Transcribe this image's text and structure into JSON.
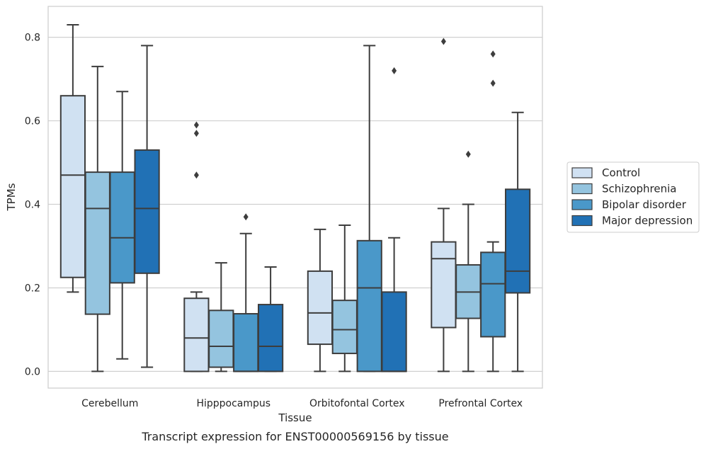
{
  "caption": "Transcript expression for ENST00000569156 by tissue",
  "chart_data": {
    "type": "boxplot",
    "xlabel": "Tissue",
    "ylabel": "TPMs",
    "ylim": [
      -0.04,
      0.874
    ],
    "yticks": [
      "0.0",
      "0.2",
      "0.4",
      "0.6",
      "0.8"
    ],
    "ytick_values": [
      0.0,
      0.2,
      0.4,
      0.6,
      0.8
    ],
    "grid": "horizontal",
    "legend_position": "right",
    "categories": [
      "Cerebellum",
      "Hipppocampus",
      "Orbitofontal Cortex",
      "Prefrontal Cortex"
    ],
    "series": [
      {
        "name": "Control",
        "color": "#d0e1f2",
        "boxes": [
          {
            "whisker_low": 0.19,
            "q1": 0.225,
            "median": 0.47,
            "q3": 0.66,
            "whisker_high": 0.83,
            "outliers": []
          },
          {
            "whisker_low": 0.0,
            "q1": 0.0,
            "median": 0.08,
            "q3": 0.175,
            "whisker_high": 0.19,
            "outliers": [
              0.59,
              0.57,
              0.47
            ]
          },
          {
            "whisker_low": 0.0,
            "q1": 0.065,
            "median": 0.14,
            "q3": 0.24,
            "whisker_high": 0.34,
            "outliers": []
          },
          {
            "whisker_low": 0.0,
            "q1": 0.105,
            "median": 0.27,
            "q3": 0.31,
            "whisker_high": 0.39,
            "outliers": [
              0.79
            ]
          }
        ]
      },
      {
        "name": "Schizophrenia",
        "color": "#94c4df",
        "boxes": [
          {
            "whisker_low": 0.0,
            "q1": 0.137,
            "median": 0.39,
            "q3": 0.477,
            "whisker_high": 0.73,
            "outliers": []
          },
          {
            "whisker_low": 0.0,
            "q1": 0.01,
            "median": 0.06,
            "q3": 0.146,
            "whisker_high": 0.26,
            "outliers": []
          },
          {
            "whisker_low": 0.0,
            "q1": 0.043,
            "median": 0.1,
            "q3": 0.17,
            "whisker_high": 0.35,
            "outliers": []
          },
          {
            "whisker_low": 0.0,
            "q1": 0.127,
            "median": 0.19,
            "q3": 0.255,
            "whisker_high": 0.4,
            "outliers": [
              0.52
            ]
          }
        ]
      },
      {
        "name": "Bipolar disorder",
        "color": "#4a98c9",
        "boxes": [
          {
            "whisker_low": 0.03,
            "q1": 0.212,
            "median": 0.32,
            "q3": 0.477,
            "whisker_high": 0.67,
            "outliers": []
          },
          {
            "whisker_low": 0.0,
            "q1": 0.0,
            "median": 0.0,
            "q3": 0.138,
            "whisker_high": 0.33,
            "outliers": [
              0.37
            ]
          },
          {
            "whisker_low": 0.0,
            "q1": 0.0,
            "median": 0.2,
            "q3": 0.313,
            "whisker_high": 0.78,
            "outliers": []
          },
          {
            "whisker_low": 0.0,
            "q1": 0.083,
            "median": 0.21,
            "q3": 0.285,
            "whisker_high": 0.31,
            "outliers": [
              0.69,
              0.76
            ]
          }
        ]
      },
      {
        "name": "Major depression",
        "color": "#2171b5",
        "boxes": [
          {
            "whisker_low": 0.01,
            "q1": 0.235,
            "median": 0.39,
            "q3": 0.53,
            "whisker_high": 0.78,
            "outliers": []
          },
          {
            "whisker_low": 0.0,
            "q1": 0.0,
            "median": 0.06,
            "q3": 0.16,
            "whisker_high": 0.25,
            "outliers": []
          },
          {
            "whisker_low": 0.0,
            "q1": 0.0,
            "median": 0.0,
            "q3": 0.19,
            "whisker_high": 0.32,
            "outliers": [
              0.72
            ]
          },
          {
            "whisker_low": 0.0,
            "q1": 0.188,
            "median": 0.24,
            "q3": 0.436,
            "whisker_high": 0.62,
            "outliers": []
          }
        ]
      }
    ]
  }
}
